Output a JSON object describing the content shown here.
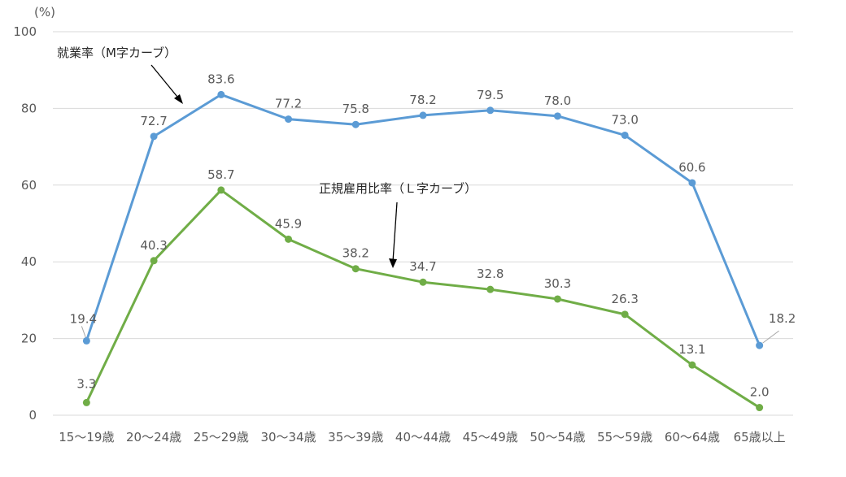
{
  "chart_data": {
    "type": "line",
    "y_unit_label": "(%)",
    "ylim": [
      0,
      100
    ],
    "yticks": [
      0,
      20,
      40,
      60,
      80,
      100
    ],
    "grid": true,
    "categories": [
      "15～19歳",
      "20～24歳",
      "25～29歳",
      "30～34歳",
      "35～39歳",
      "40～44歳",
      "45～49歳",
      "50～54歳",
      "55～59歳",
      "60～64歳",
      "65歳以上"
    ],
    "series": [
      {
        "name": "就業率（M字カーブ）",
        "color": "#5B9BD5",
        "values": [
          19.4,
          72.7,
          83.6,
          77.2,
          75.8,
          78.2,
          79.5,
          78.0,
          73.0,
          60.6,
          18.2
        ],
        "labels": [
          "19.4",
          "72.7",
          "83.6",
          "77.2",
          "75.8",
          "78.2",
          "79.5",
          "78.0",
          "73.0",
          "60.6",
          "18.2"
        ]
      },
      {
        "name": "正規雇用比率（Ｌ字カーブ）",
        "color": "#70AD47",
        "values": [
          3.3,
          40.3,
          58.7,
          45.9,
          38.2,
          34.7,
          32.8,
          30.3,
          26.3,
          13.1,
          2.0
        ],
        "labels": [
          "3.3",
          "40.3",
          "58.7",
          "45.9",
          "38.2",
          "34.7",
          "32.8",
          "30.3",
          "26.3",
          "13.1",
          "2.0"
        ]
      }
    ],
    "annotations": [
      {
        "text": "就業率（M字カーブ）",
        "series": 0
      },
      {
        "text": "正規雇用比率（Ｌ字カーブ）",
        "series": 1
      }
    ]
  }
}
